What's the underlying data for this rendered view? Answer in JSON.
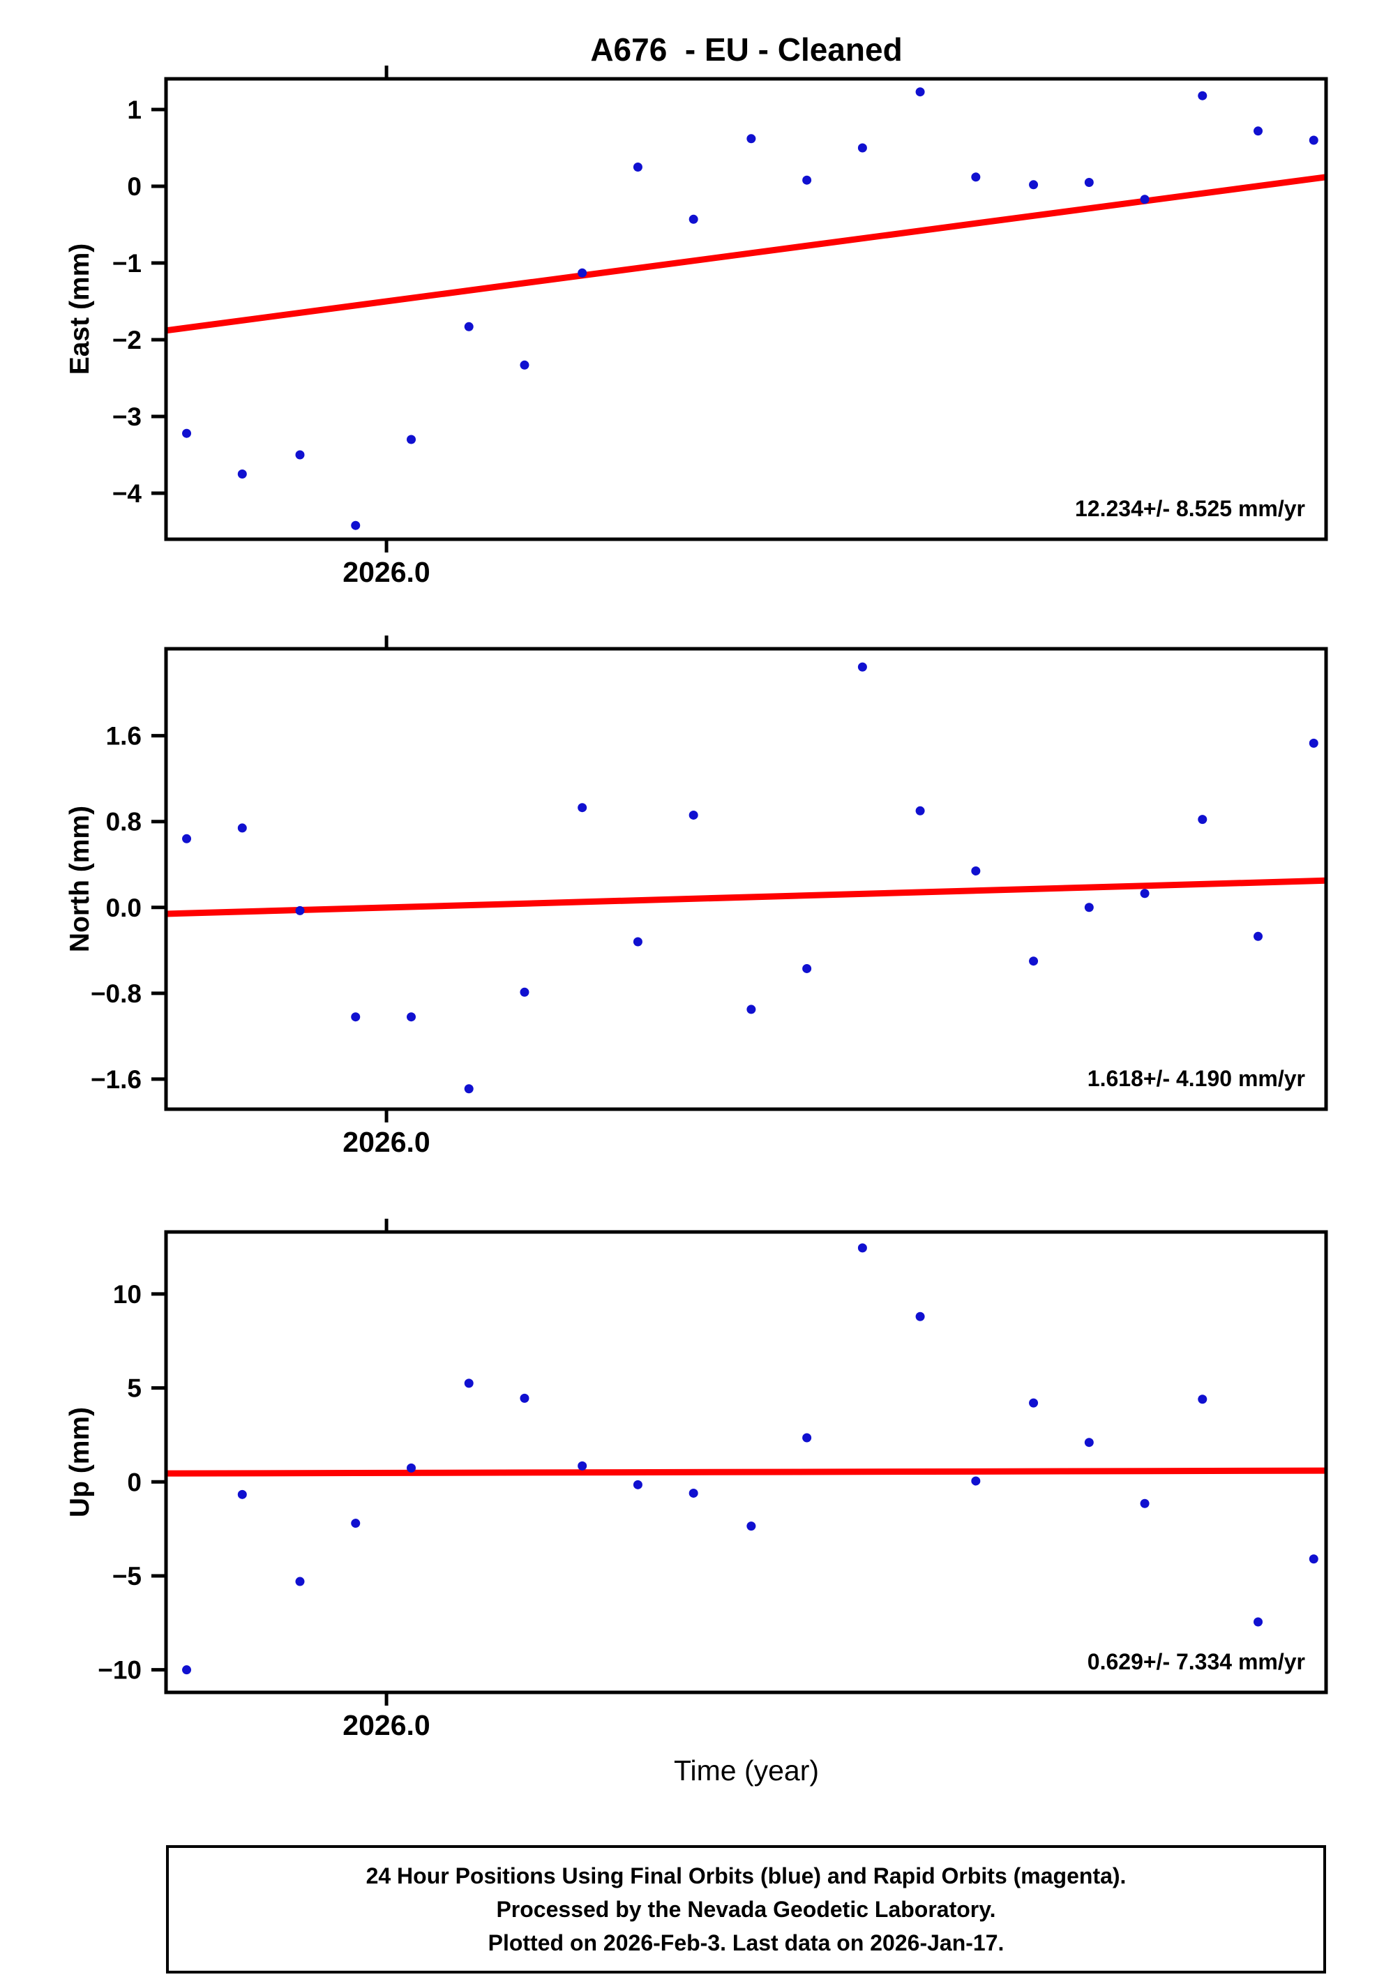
{
  "title": "A676  - EU - Cleaned",
  "xlabel": "Time (year)",
  "x_tick": {
    "value": 2026.0,
    "label": "2026.0"
  },
  "footer": {
    "line1": "24 Hour Positions Using Final Orbits (blue) and Rapid Orbits (magenta).",
    "line2": "Processed by the Nevada Geodetic Laboratory.",
    "line3": "Plotted on 2026-Feb-3. Last data on 2026-Jan-17."
  },
  "colors": {
    "points": "#1010d0",
    "trend": "#ff0000",
    "axis": "#000000"
  },
  "chart_data": [
    {
      "type": "scatter",
      "title": "A676  - EU - Cleaned",
      "ylabel": "East (mm)",
      "annotation": "12.234+/- 8.525 mm/yr",
      "legend_position": "none",
      "grid": false,
      "xlim": [
        2025.9893,
        2026.0456
      ],
      "ylim": [
        -4.6,
        1.4
      ],
      "yticks": {
        "values": [
          1,
          0,
          -1,
          -2,
          -3,
          -4
        ],
        "labels": [
          "1",
          "0",
          "−1",
          "−2",
          "−3",
          "−4"
        ]
      },
      "xticks": {
        "values": [
          2026.0
        ],
        "labels": [
          "2026.0"
        ]
      },
      "x": [
        2025.9903,
        2025.993,
        2025.9958,
        2025.9985,
        2026.0012,
        2026.004,
        2026.0067,
        2026.0095,
        2026.0122,
        2026.0149,
        2026.0177,
        2026.0204,
        2026.0231,
        2026.0259,
        2026.0286,
        2026.0314,
        2026.0341,
        2026.0368,
        2026.0396,
        2026.0423,
        2026.045
      ],
      "y": [
        -3.22,
        -3.75,
        -3.5,
        -4.42,
        -3.3,
        -1.83,
        -2.33,
        -1.13,
        0.25,
        -0.43,
        0.62,
        0.08,
        0.5,
        1.23,
        0.12,
        0.02,
        0.05,
        -0.17,
        1.18,
        0.72,
        0.6
      ],
      "trend": {
        "rate_mm_yr": 12.234,
        "sigma_mm_yr": 8.525,
        "y_start": -1.88,
        "y_end": 0.12
      }
    },
    {
      "type": "scatter",
      "ylabel": "North (mm)",
      "annotation": "1.618+/- 4.190 mm/yr",
      "legend_position": "none",
      "grid": false,
      "xlim": [
        2025.9893,
        2026.0456
      ],
      "ylim": [
        -1.88,
        2.41
      ],
      "yticks": {
        "values": [
          1.6,
          0.8,
          0.0,
          -0.8,
          -1.6
        ],
        "labels": [
          "1.6",
          "0.8",
          "0.0",
          "−0.8",
          "−1.6"
        ]
      },
      "xticks": {
        "values": [
          2026.0
        ],
        "labels": [
          "2026.0"
        ]
      },
      "x": [
        2025.9903,
        2025.993,
        2025.9958,
        2025.9985,
        2026.0012,
        2026.004,
        2026.0067,
        2026.0095,
        2026.0122,
        2026.0149,
        2026.0177,
        2026.0204,
        2026.0231,
        2026.0259,
        2026.0286,
        2026.0314,
        2026.0341,
        2026.0368,
        2026.0396,
        2026.0423,
        2026.045
      ],
      "y": [
        0.64,
        0.74,
        -0.03,
        -1.02,
        -1.02,
        -1.69,
        -0.79,
        0.93,
        -0.32,
        0.86,
        -0.95,
        -0.57,
        2.24,
        0.9,
        0.34,
        -0.5,
        0.0,
        0.13,
        0.82,
        -0.27,
        1.53
      ],
      "trend": {
        "rate_mm_yr": 1.618,
        "sigma_mm_yr": 4.19,
        "y_start": -0.06,
        "y_end": 0.25
      }
    },
    {
      "type": "scatter",
      "ylabel": "Up (mm)",
      "annotation": "0.629+/- 7.334 mm/yr",
      "legend_position": "none",
      "grid": false,
      "xlim": [
        2025.9893,
        2026.0456
      ],
      "ylim": [
        -11.2,
        13.3
      ],
      "yticks": {
        "values": [
          10,
          5,
          0,
          -5,
          -10
        ],
        "labels": [
          "10",
          "5",
          "0",
          "−5",
          "−10"
        ]
      },
      "xticks": {
        "values": [
          2026.0
        ],
        "labels": [
          "2026.0"
        ]
      },
      "x": [
        2025.9903,
        2025.993,
        2025.9958,
        2025.9985,
        2026.0012,
        2026.004,
        2026.0067,
        2026.0095,
        2026.0122,
        2026.0149,
        2026.0177,
        2026.0204,
        2026.0231,
        2026.0259,
        2026.0286,
        2026.0314,
        2026.0341,
        2026.0368,
        2026.0396,
        2026.0423,
        2026.045
      ],
      "y": [
        -10.0,
        -0.67,
        -5.3,
        -2.2,
        0.74,
        5.25,
        4.45,
        0.85,
        -0.15,
        -0.6,
        -2.35,
        2.35,
        12.45,
        8.8,
        0.05,
        4.2,
        2.1,
        -1.15,
        4.4,
        -7.45,
        -4.1
      ],
      "trend": {
        "rate_mm_yr": 0.629,
        "sigma_mm_yr": 7.334,
        "y_start": 0.45,
        "y_end": 0.6
      }
    }
  ]
}
